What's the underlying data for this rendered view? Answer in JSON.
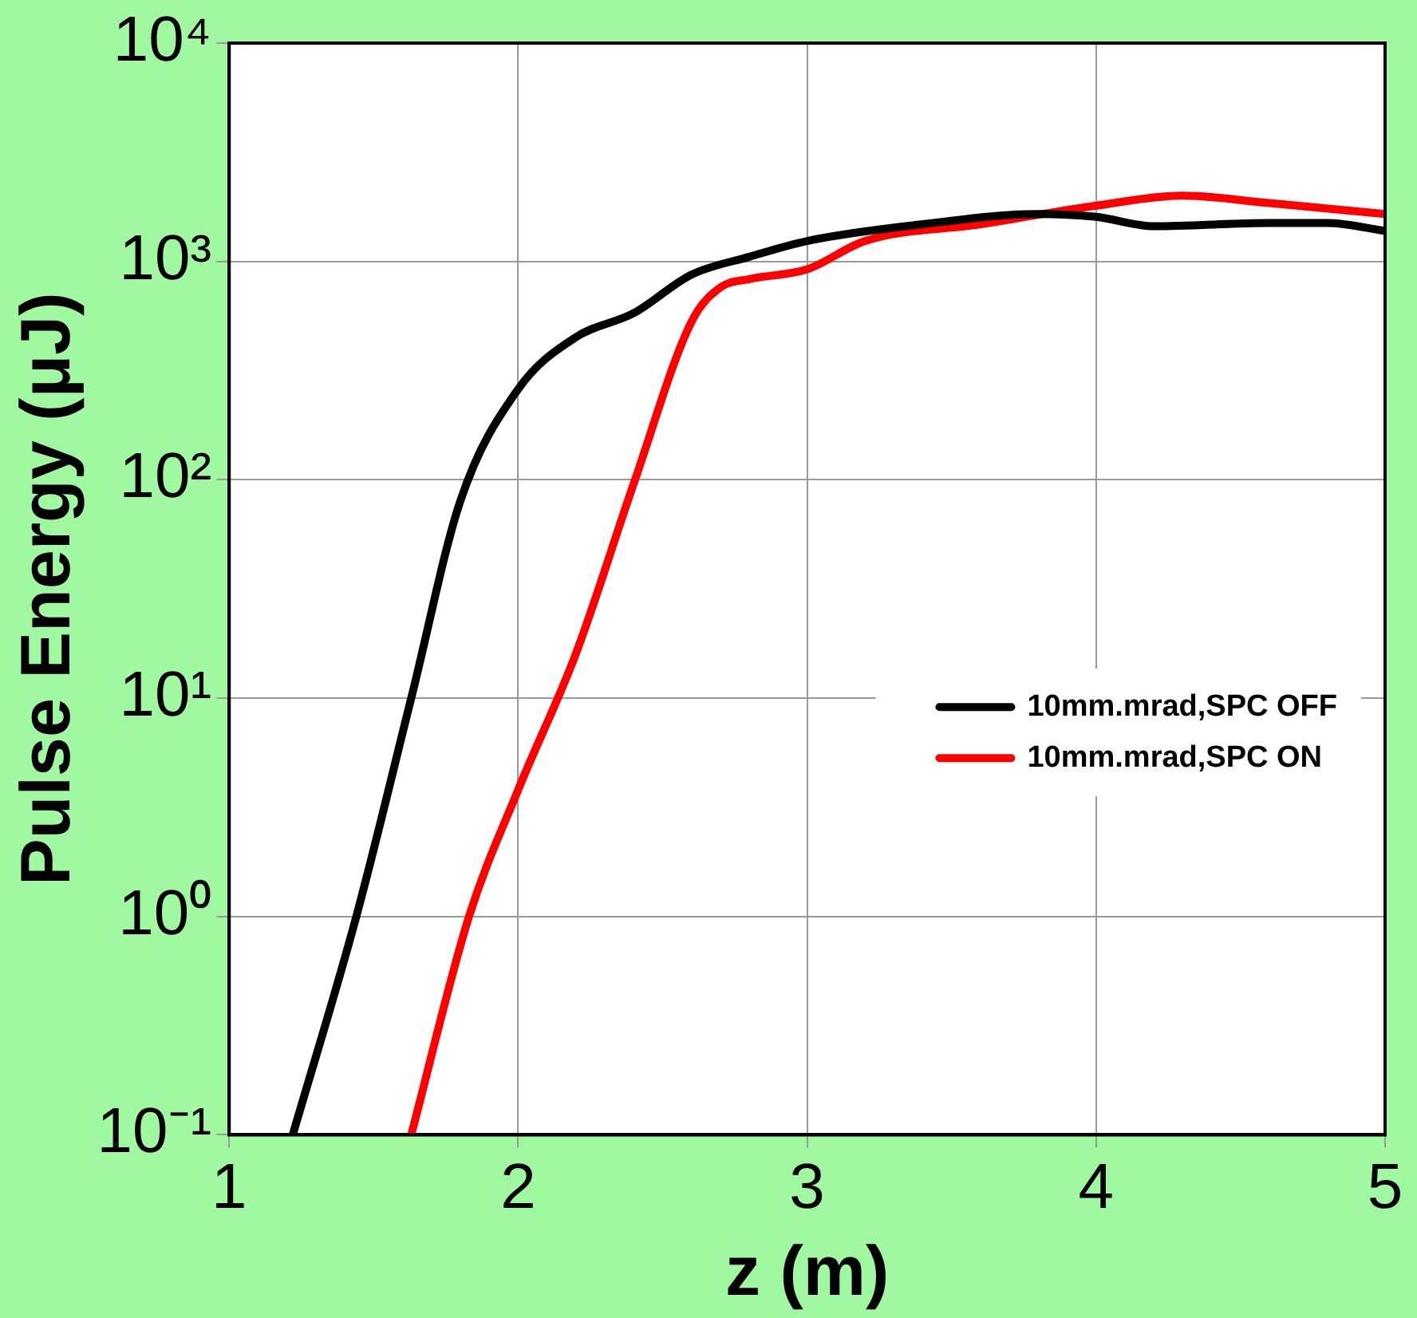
{
  "chart_data": {
    "type": "line",
    "xlabel": "z (m)",
    "ylabel": "Pulse Energy (μJ)",
    "log": "y",
    "grid": true,
    "legend": "right",
    "marker": "none",
    "line_style": "solid",
    "xlim": [
      1,
      5
    ],
    "xticks": [
      1,
      2,
      3,
      4,
      5
    ],
    "ylim": [
      0.1,
      10000
    ],
    "yticks": [
      {
        "value": 0.1,
        "label": "10⁻¹"
      },
      {
        "value": 1,
        "label": "10⁰"
      },
      {
        "value": 10,
        "label": "10¹"
      },
      {
        "value": 100,
        "label": "10²"
      },
      {
        "value": 1000,
        "label": "10³"
      },
      {
        "value": 10000,
        "label": "10⁴"
      }
    ],
    "series": [
      {
        "name": "10mm.mrad,SPC OFF",
        "color": "#000000",
        "x": [
          1.22,
          1.44,
          1.63,
          1.8,
          2.0,
          2.2,
          2.4,
          2.6,
          2.8,
          3.0,
          3.4,
          3.8,
          4.0,
          4.2,
          4.6,
          4.8,
          5.0
        ],
        "values": [
          0.1,
          1,
          10,
          80,
          260,
          450,
          580,
          870,
          1050,
          1240,
          1480,
          1650,
          1600,
          1450,
          1500,
          1500,
          1380
        ]
      },
      {
        "name": "10mm.mrad,SPC ON",
        "color": "#ff0000",
        "x": [
          1.63,
          1.83,
          2.0,
          2.2,
          2.4,
          2.6,
          2.7,
          2.8,
          3.0,
          3.2,
          3.6,
          4.0,
          4.3,
          4.6,
          5.0
        ],
        "values": [
          0.1,
          1,
          3.8,
          16,
          96,
          530,
          760,
          830,
          920,
          1240,
          1480,
          1800,
          2000,
          1850,
          1650
        ]
      }
    ]
  }
}
